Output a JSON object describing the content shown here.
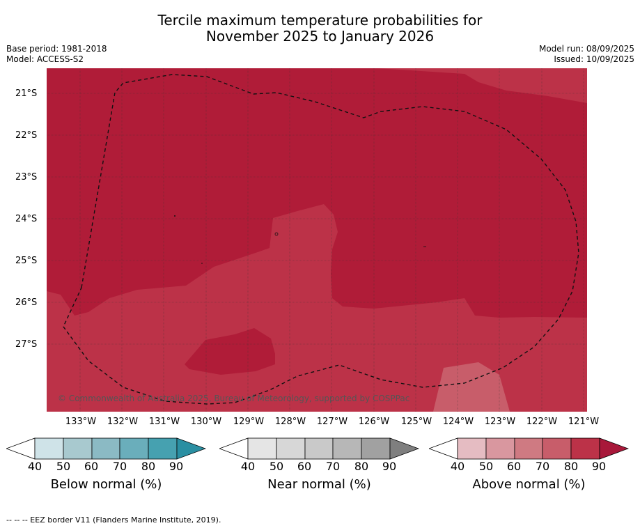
{
  "title_line1": "Tercile maximum temperature probabilities for",
  "title_line2": "November 2025 to January 2026",
  "meta_left": [
    "Base period: 1981-2018",
    "Model: ACCESS-S2"
  ],
  "meta_right": [
    "Model run: 08/09/2025",
    "Issued: 10/09/2025"
  ],
  "lat_labels": [
    "21°S",
    "22°S",
    "23°S",
    "24°S",
    "25°S",
    "26°S",
    "27°S"
  ],
  "lon_labels": [
    "133°W",
    "132°W",
    "131°W",
    "130°W",
    "129°W",
    "128°W",
    "127°W",
    "126°W",
    "125°W",
    "124°W",
    "123°W",
    "122°W",
    "121°W"
  ],
  "copyright": "© Commonwealth of Australia 2025, Bureau of Meteorology, supported by COSPPac",
  "colorbars": [
    {
      "title": "Below normal (%)",
      "ticks": [
        "40",
        "50",
        "60",
        "70",
        "80",
        "90"
      ],
      "colors": [
        "#cfe3e8",
        "#a8c9cf",
        "#8bbac4",
        "#6aaebb",
        "#46a1b0",
        "#2a8fa2"
      ]
    },
    {
      "title": "Near normal (%)",
      "ticks": [
        "40",
        "50",
        "60",
        "70",
        "80",
        "90"
      ],
      "colors": [
        "#e5e5e5",
        "#d7d7d7",
        "#c9c9c9",
        "#b7b7b7",
        "#a1a1a1",
        "#7f7f7f"
      ]
    },
    {
      "title": "Above normal (%)",
      "ticks": [
        "40",
        "50",
        "60",
        "70",
        "80",
        "90"
      ],
      "colors": [
        "#e5bcc2",
        "#d9979f",
        "#cf7a82",
        "#c85d6a",
        "#bc3248",
        "#a8183a"
      ]
    }
  ],
  "footnote": "--  --  -- EEZ border V11 (Flanders Marine Institute, 2019).",
  "map_colors": {
    "above_80_90": "#b01c38",
    "above_70_80": "#bc3248"
  }
}
